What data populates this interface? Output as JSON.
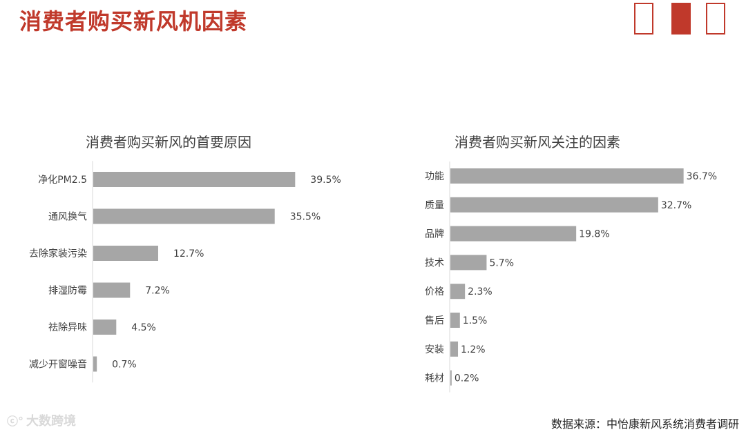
{
  "header": {
    "title": "消费者购买新风机因素"
  },
  "colors": {
    "accent": "#c0392b",
    "bar": "#a6a6a6",
    "text": "#404040"
  },
  "footer": {
    "source": "数据来源：中怡康新风系统消费者调研",
    "watermark": "大数跨境"
  },
  "chart_data": [
    {
      "type": "bar",
      "orientation": "horizontal",
      "title": "消费者购买新风的首要原因",
      "categories": [
        "净化PM2.5",
        "通风换气",
        "去除家装污染",
        "排湿防霉",
        "祛除异味",
        "减少开窗噪音"
      ],
      "values": [
        39.5,
        35.5,
        12.7,
        7.2,
        4.5,
        0.7
      ],
      "value_labels": [
        "39.5%",
        "35.5%",
        "12.7%",
        "7.2%",
        "4.5%",
        "0.7%"
      ],
      "xlim": [
        0,
        40
      ],
      "grid": false,
      "legend": "none"
    },
    {
      "type": "bar",
      "orientation": "horizontal",
      "title": "消费者购买新风关注的因素",
      "categories": [
        "功能",
        "质量",
        "品牌",
        "技术",
        "价格",
        "售后",
        "安装",
        "耗材"
      ],
      "values": [
        36.7,
        32.7,
        19.8,
        5.7,
        2.3,
        1.5,
        1.2,
        0.2
      ],
      "value_labels": [
        "36.7%",
        "32.7%",
        "19.8%",
        "5.7%",
        "2.3%",
        "1.5%",
        "1.2%",
        "0.2%"
      ],
      "xlim": [
        0,
        37
      ],
      "grid": false,
      "legend": "none"
    }
  ]
}
